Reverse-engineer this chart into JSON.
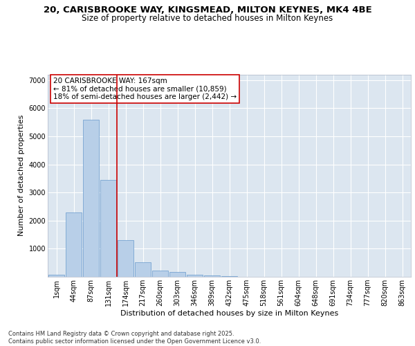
{
  "title_line1": "20, CARISBROOKE WAY, KINGSMEAD, MILTON KEYNES, MK4 4BE",
  "title_line2": "Size of property relative to detached houses in Milton Keynes",
  "xlabel": "Distribution of detached houses by size in Milton Keynes",
  "ylabel": "Number of detached properties",
  "categories": [
    "1sqm",
    "44sqm",
    "87sqm",
    "131sqm",
    "174sqm",
    "217sqm",
    "260sqm",
    "303sqm",
    "346sqm",
    "389sqm",
    "432sqm",
    "475sqm",
    "518sqm",
    "561sqm",
    "604sqm",
    "648sqm",
    "691sqm",
    "734sqm",
    "777sqm",
    "820sqm",
    "863sqm"
  ],
  "values": [
    75,
    2300,
    5580,
    3440,
    1300,
    510,
    210,
    175,
    85,
    50,
    25,
    0,
    0,
    0,
    0,
    0,
    0,
    0,
    0,
    0,
    0
  ],
  "bar_color": "#b8cfe8",
  "bar_edge_color": "#6699cc",
  "vline_color": "#cc0000",
  "annotation_text": "20 CARISBROOKE WAY: 167sqm\n← 81% of detached houses are smaller (10,859)\n18% of semi-detached houses are larger (2,442) →",
  "annotation_box_color": "#cc0000",
  "ylim": [
    0,
    7200
  ],
  "yticks": [
    0,
    1000,
    2000,
    3000,
    4000,
    5000,
    6000,
    7000
  ],
  "background_color": "#dce6f0",
  "grid_color": "#ffffff",
  "footer_text": "Contains HM Land Registry data © Crown copyright and database right 2025.\nContains public sector information licensed under the Open Government Licence v3.0.",
  "title_fontsize": 9.5,
  "subtitle_fontsize": 8.5,
  "axis_label_fontsize": 8,
  "tick_fontsize": 7,
  "annotation_fontsize": 7.5,
  "footer_fontsize": 6
}
